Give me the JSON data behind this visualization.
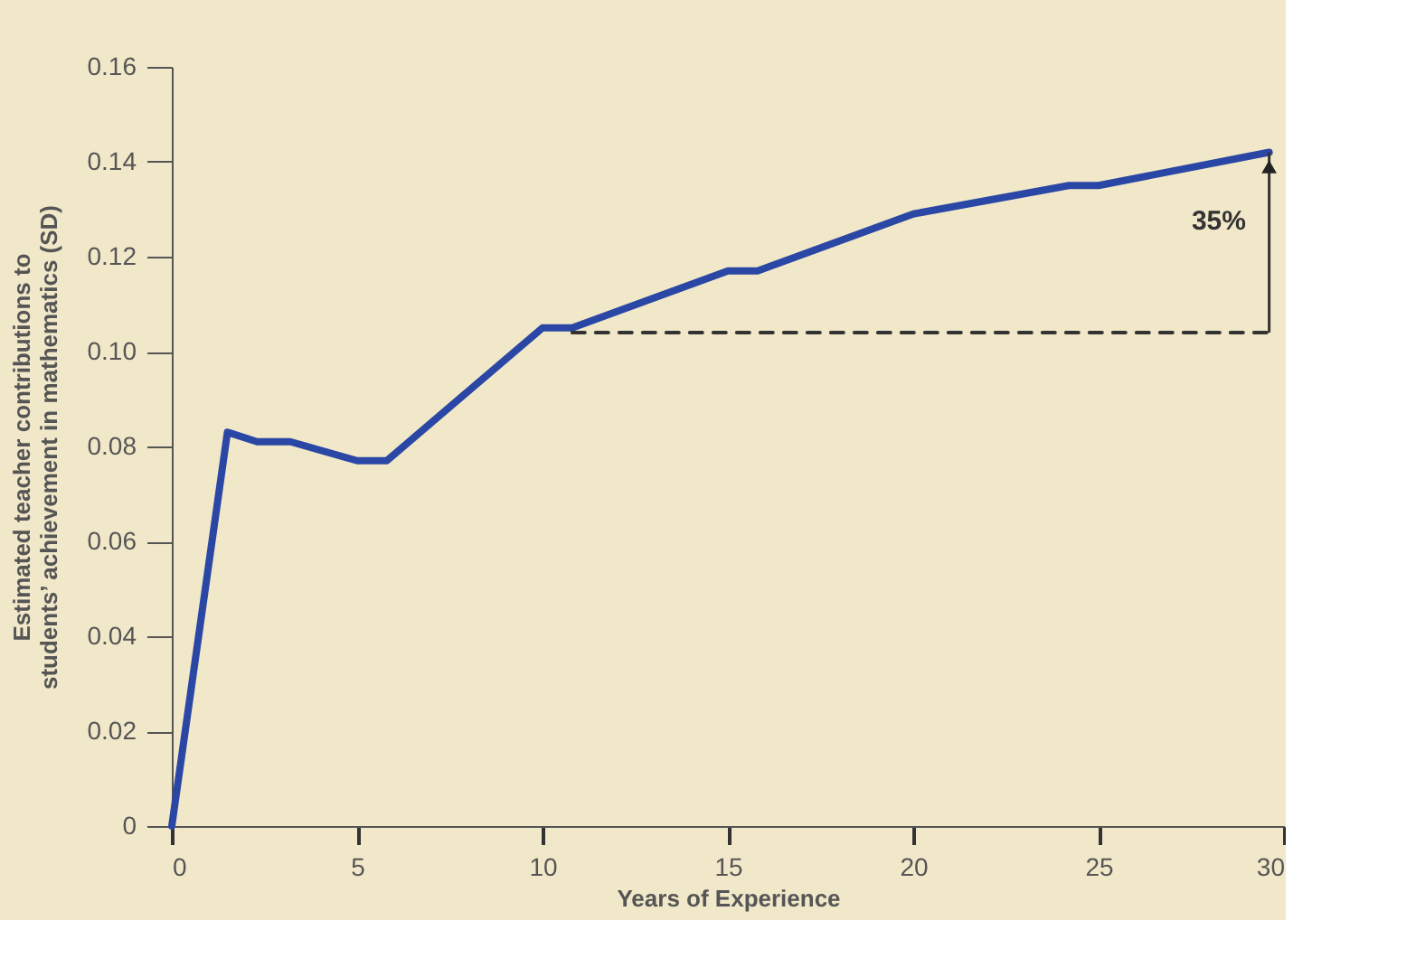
{
  "chart_data": {
    "type": "line",
    "xlabel": "Years of Experience",
    "ylabel": [
      "Estimated teacher contributions to",
      "students’ achievement in mathematics (SD)"
    ],
    "xlim": [
      0,
      30
    ],
    "xticks": [
      0,
      5,
      10,
      15,
      20,
      25,
      30
    ],
    "ylim": [
      0,
      0.16
    ],
    "yticks": [
      {
        "value": 0,
        "label": "0"
      },
      {
        "value": 0.02,
        "label": "0.02"
      },
      {
        "value": 0.04,
        "label": "0.04"
      },
      {
        "value": 0.06,
        "label": "0.06"
      },
      {
        "value": 0.08,
        "label": "0.08"
      },
      {
        "value": 0.1,
        "label": "0.10"
      },
      {
        "value": 0.12,
        "label": "0.12"
      },
      {
        "value": 0.14,
        "label": "0.14"
      },
      {
        "value": 0.16,
        "label": "0.16"
      }
    ],
    "series": [
      {
        "color": "#2a47a5",
        "x": [
          0,
          1.5,
          2.3,
          3.2,
          5,
          5.8,
          10,
          10.8,
          15,
          15.8,
          20,
          24.2,
          25,
          29.6
        ],
        "values": [
          0,
          0.083,
          0.081,
          0.081,
          0.077,
          0.077,
          0.105,
          0.105,
          0.117,
          0.117,
          0.129,
          0.135,
          0.135,
          0.142
        ]
      },
      {
        "color": "#333333",
        "line_style": "dashed",
        "x": [
          10.8,
          29.6
        ],
        "values": [
          0.104,
          0.104
        ]
      }
    ],
    "annotations": [
      "35%"
    ],
    "grid": false
  }
}
